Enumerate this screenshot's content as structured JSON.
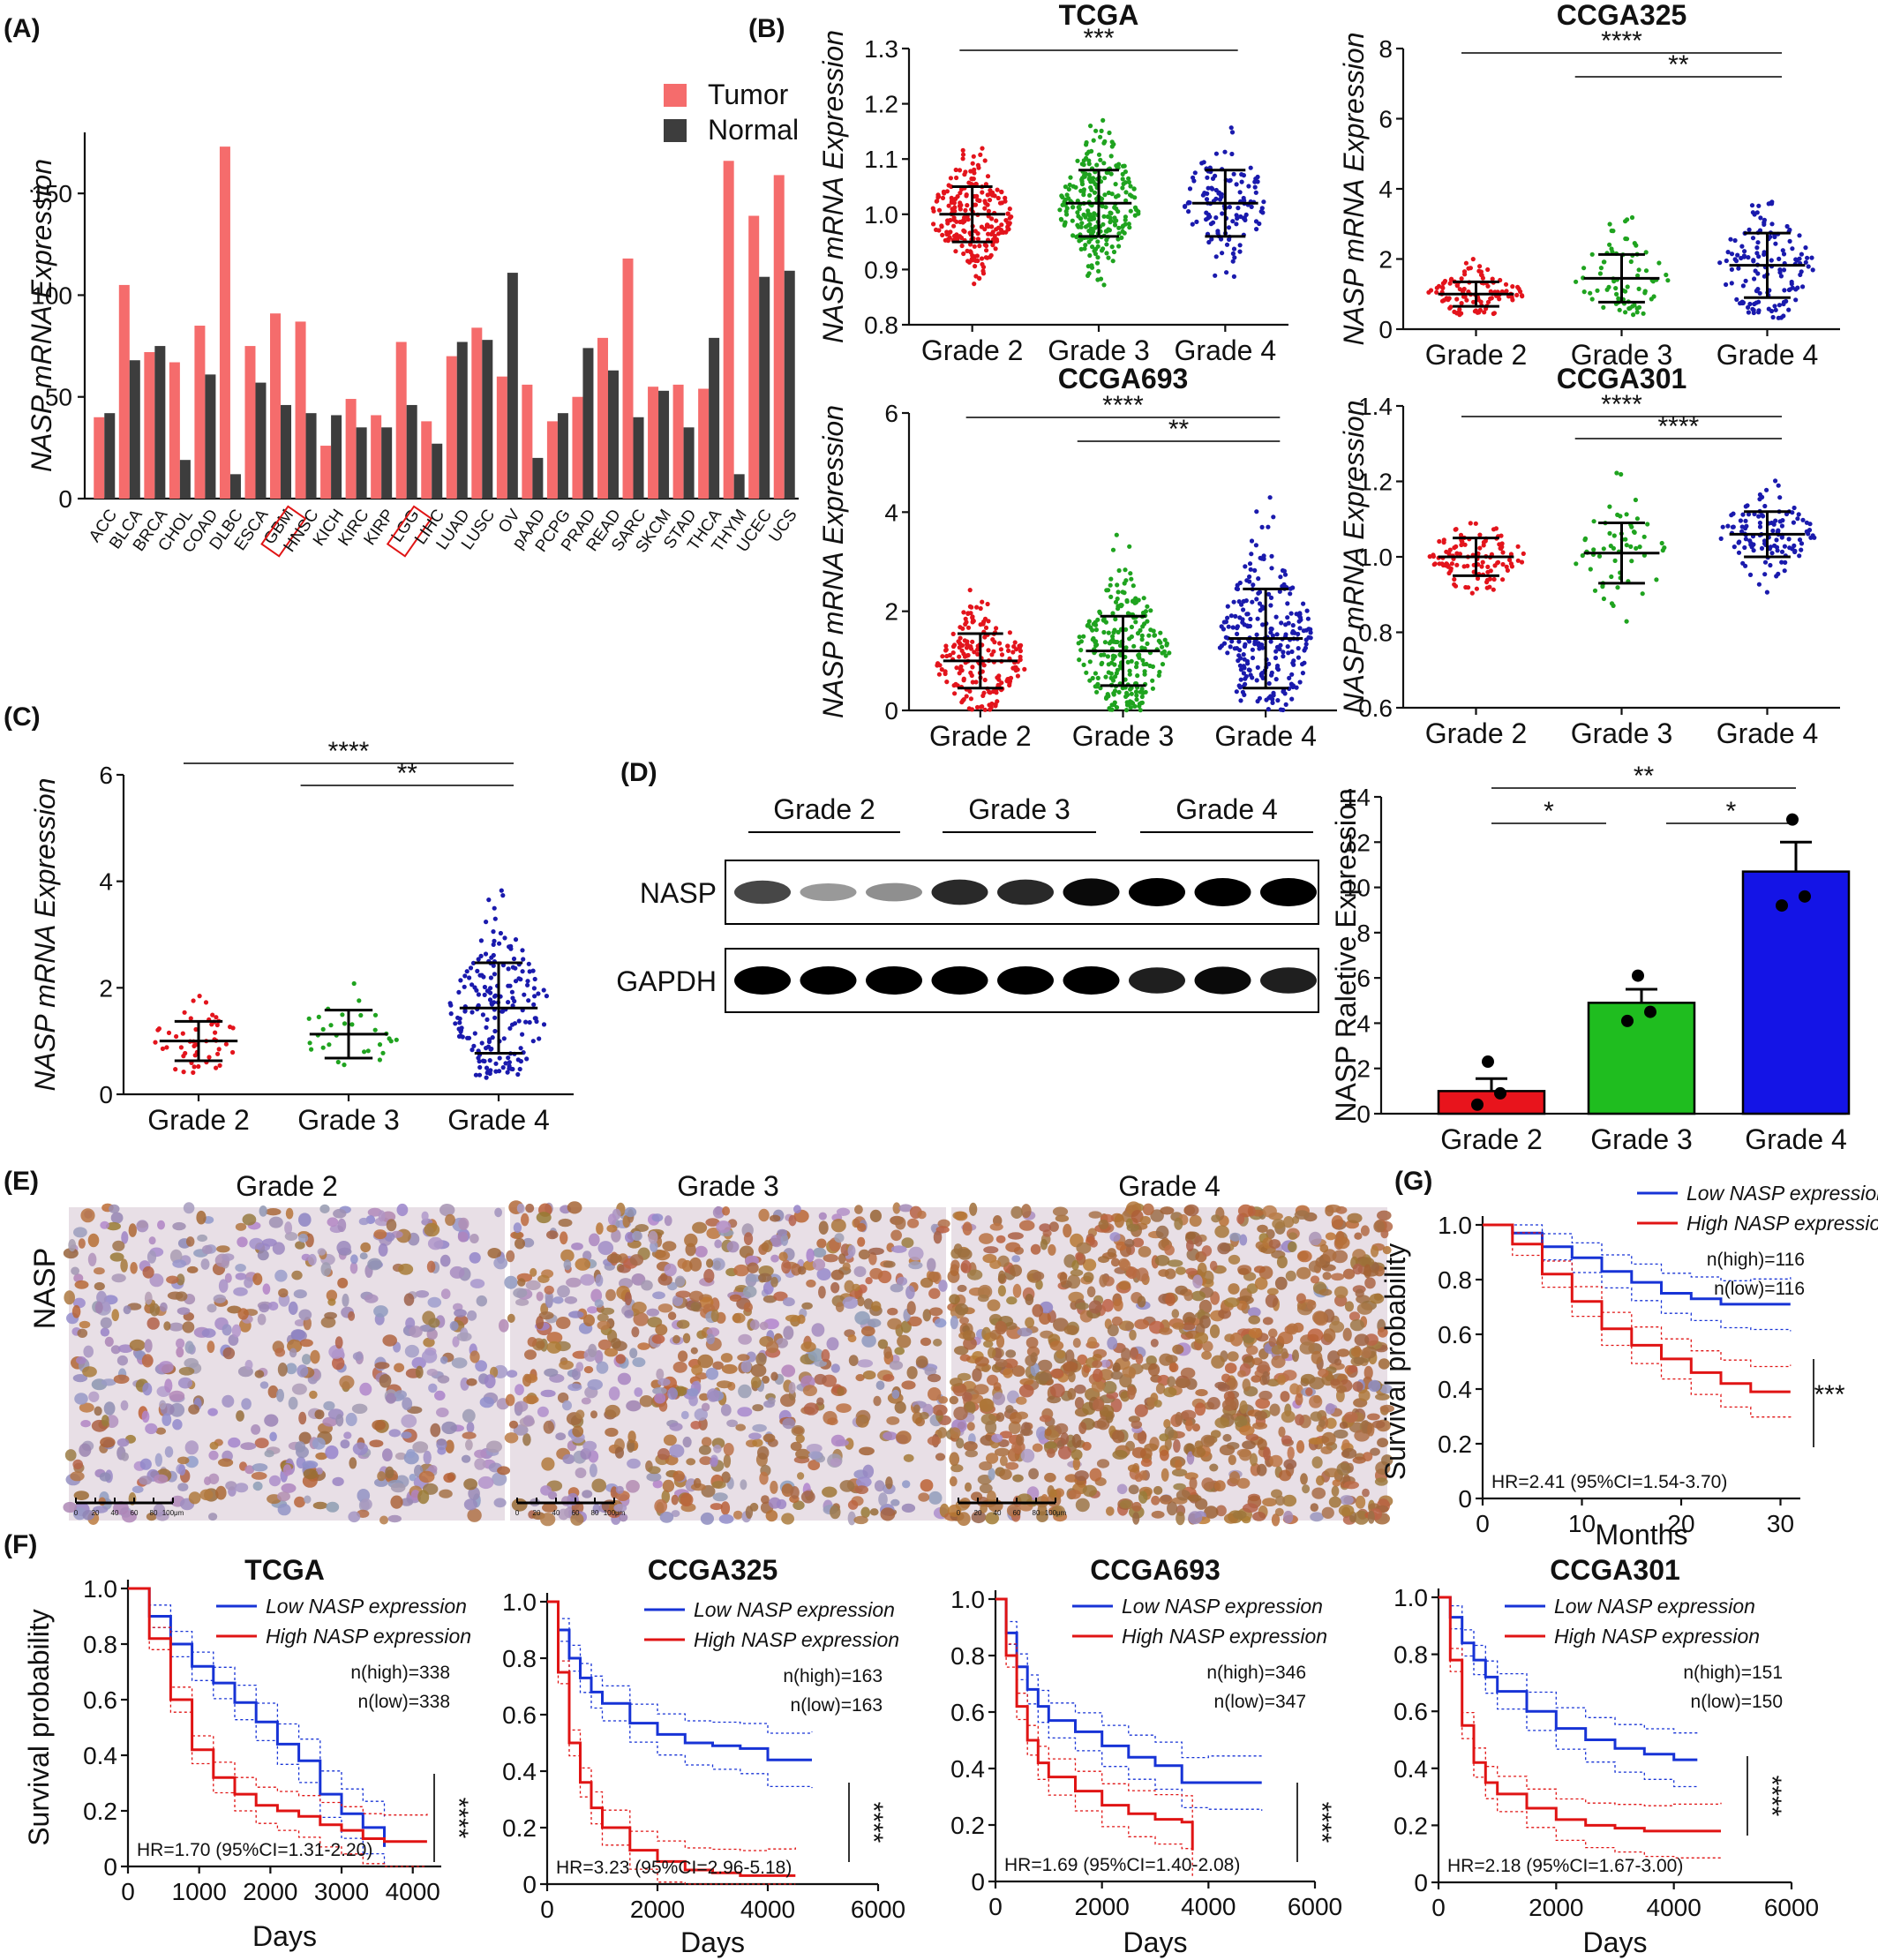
{
  "panel_letters": [
    "(A)",
    "(B)",
    "(C)",
    "(D)",
    "(E)",
    "(F)",
    "(G)"
  ],
  "colors": {
    "tumor": "#f56c6c",
    "normal": "#3d3d3d",
    "grade2": "#e3141c",
    "grade3": "#1fa31f",
    "grade4": "#1a1aad",
    "low": "#1733d6",
    "high": "#e01414",
    "grade2_bar": "#e8141c",
    "grade3_bar": "#1fbd1f",
    "grade4_bar": "#1414e6"
  },
  "chart_data": [
    {
      "id": "A",
      "type": "bar",
      "ylabel": "NASP mRNA Expression",
      "ylim": [
        0,
        180
      ],
      "yticks": [
        0,
        50,
        100,
        150
      ],
      "categories": [
        "ACC",
        "BLCA",
        "BRCA",
        "CHOL",
        "COAD",
        "DLBC",
        "ESCA",
        "GBM",
        "HNSC",
        "KICH",
        "KIRC",
        "KIRP",
        "LGG",
        "LIHC",
        "LUAD",
        "LUSC",
        "OV",
        "pAAD",
        "PCPG",
        "PRAD",
        "READ",
        "SARC",
        "SKCM",
        "STAD",
        "THCA",
        "THYM",
        "UCEC",
        "UCS"
      ],
      "boxed": [
        "GBM",
        "LGG"
      ],
      "series": [
        {
          "name": "Tumor",
          "values": [
            40,
            105,
            72,
            67,
            85,
            173,
            75,
            91,
            87,
            26,
            49,
            41,
            77,
            38,
            70,
            84,
            60,
            56,
            38,
            50,
            79,
            118,
            55,
            56,
            54,
            166,
            139,
            159
          ]
        },
        {
          "name": "Normal",
          "values": [
            42,
            68,
            75,
            19,
            61,
            12,
            57,
            46,
            42,
            41,
            35,
            35,
            46,
            27,
            77,
            78,
            111,
            20,
            42,
            74,
            63,
            40,
            53,
            35,
            79,
            12,
            109,
            112
          ]
        }
      ]
    },
    {
      "id": "B1",
      "type": "scatter",
      "title": "TCGA",
      "ylabel": "NASP mRNA Expression",
      "categories": [
        "Grade 2",
        "Grade 3",
        "Grade 4"
      ],
      "ylim": [
        0.8,
        1.3
      ],
      "yticks": [
        "0.8",
        "0.9",
        "1.0",
        "1.1",
        "1.2",
        "1.3"
      ],
      "mean": [
        1.0,
        1.02,
        1.02
      ],
      "sd": [
        0.05,
        0.06,
        0.06
      ],
      "n": [
        230,
        260,
        130
      ],
      "range": [
        [
          0.87,
          1.14
        ],
        [
          0.86,
          1.17
        ],
        [
          0.84,
          1.16
        ]
      ],
      "significance": [
        {
          "from": 0,
          "to": 2,
          "label": "***"
        }
      ]
    },
    {
      "id": "B2",
      "type": "scatter",
      "title": "CCGA325",
      "ylabel": "NASP mRNA Expression",
      "categories": [
        "Grade 2",
        "Grade 3",
        "Grade 4"
      ],
      "ylim": [
        0,
        8
      ],
      "yticks": [
        "0",
        "2",
        "4",
        "6",
        "8"
      ],
      "mean": [
        1.0,
        1.45,
        1.82
      ],
      "sd": [
        0.35,
        0.68,
        0.92
      ],
      "n": [
        105,
        75,
        140
      ],
      "range": [
        [
          0.4,
          2.3
        ],
        [
          0.4,
          4.2
        ],
        [
          0.3,
          6.3
        ]
      ],
      "significance": [
        {
          "from": 0,
          "to": 2,
          "label": "****"
        },
        {
          "from": 1,
          "to": 2,
          "label": "**"
        }
      ]
    },
    {
      "id": "B3",
      "type": "scatter",
      "title": "CCGA693",
      "ylabel": "NASP mRNA Expression",
      "categories": [
        "Grade 2",
        "Grade 3",
        "Grade 4"
      ],
      "ylim": [
        0,
        6
      ],
      "yticks": [
        "0",
        "2",
        "4",
        "6"
      ],
      "mean": [
        1.0,
        1.2,
        1.45
      ],
      "sd": [
        0.55,
        0.7,
        1.0
      ],
      "n": [
        190,
        250,
        250
      ],
      "range": [
        [
          0,
          3.8
        ],
        [
          0,
          4.8
        ],
        [
          0,
          5.8
        ]
      ],
      "significance": [
        {
          "from": 0,
          "to": 2,
          "label": "****"
        },
        {
          "from": 1,
          "to": 2,
          "label": "**"
        }
      ]
    },
    {
      "id": "B4",
      "type": "scatter",
      "title": "CCGA301",
      "ylabel": "NASP mRNA Expression",
      "categories": [
        "Grade 2",
        "Grade 3",
        "Grade 4"
      ],
      "ylim": [
        0.6,
        1.4
      ],
      "yticks": [
        "0.6",
        "0.8",
        "1.0",
        "1.2",
        "1.4"
      ],
      "mean": [
        1.0,
        1.01,
        1.06
      ],
      "sd": [
        0.05,
        0.08,
        0.06
      ],
      "n": [
        110,
        60,
        120
      ],
      "range": [
        [
          0.88,
          1.1
        ],
        [
          0.82,
          1.25
        ],
        [
          0.81,
          1.25
        ]
      ],
      "significance": [
        {
          "from": 0,
          "to": 2,
          "label": "****"
        },
        {
          "from": 1,
          "to": 2,
          "label": "****"
        }
      ]
    },
    {
      "id": "C",
      "type": "scatter",
      "ylabel": "NASP mRNA Expression",
      "categories": [
        "Grade 2",
        "Grade 3",
        "Grade 4"
      ],
      "ylim": [
        0,
        6
      ],
      "yticks": [
        "0",
        "2",
        "4",
        "6"
      ],
      "mean": [
        1.0,
        1.13,
        1.62
      ],
      "sd": [
        0.37,
        0.45,
        0.85
      ],
      "n": [
        50,
        30,
        190
      ],
      "range": [
        [
          0.4,
          1.85
        ],
        [
          0.5,
          2.2
        ],
        [
          0.3,
          4.8
        ]
      ],
      "significance": [
        {
          "from": 0,
          "to": 2,
          "label": "****"
        },
        {
          "from": 1,
          "to": 2,
          "label": "**"
        }
      ]
    },
    {
      "id": "D",
      "type": "bar",
      "ylabel": "NASP Raletive Expression",
      "categories": [
        "Grade 2",
        "Grade 3",
        "Grade 4"
      ],
      "values": [
        1.0,
        4.9,
        10.7
      ],
      "sem": [
        0.55,
        0.6,
        1.3
      ],
      "points": [
        [
          2.3,
          0.4,
          0.9
        ],
        [
          6.1,
          4.1,
          4.5
        ],
        [
          13.0,
          9.2,
          9.6
        ]
      ],
      "ylim": [
        0,
        14
      ],
      "yticks": [
        "0",
        "2",
        "4",
        "6",
        "8",
        "10",
        "12",
        "14"
      ],
      "significance": [
        {
          "from": 0,
          "to": 2,
          "label": "**"
        },
        {
          "from": 0,
          "to": 1,
          "label": "*"
        },
        {
          "from": 1,
          "to": 2,
          "label": "*"
        }
      ]
    },
    {
      "id": "G",
      "type": "line",
      "xlabel": "Months",
      "ylabel": "Survival probability",
      "xlim": [
        0,
        32
      ],
      "xticks": [
        "0",
        "10",
        "20",
        "30"
      ],
      "ylim": [
        0,
        1.0
      ],
      "yticks": [
        "0",
        "0.2",
        "0.4",
        "0.6",
        "0.8",
        "1.0"
      ],
      "series": [
        {
          "name": "Low NASP expression",
          "x": [
            0,
            3,
            6,
            9,
            12,
            15,
            18,
            21,
            24,
            27,
            31
          ],
          "y": [
            1.0,
            0.97,
            0.92,
            0.88,
            0.83,
            0.79,
            0.75,
            0.73,
            0.71,
            0.71,
            0.71
          ]
        },
        {
          "name": "High NASP expression",
          "x": [
            0,
            3,
            6,
            9,
            12,
            15,
            18,
            21,
            24,
            27,
            31
          ],
          "y": [
            1.0,
            0.93,
            0.82,
            0.72,
            0.62,
            0.56,
            0.51,
            0.46,
            0.42,
            0.39,
            0.39
          ]
        }
      ],
      "n_high": "n(high)=116",
      "n_low": "n(low)=116",
      "hr": "HR=2.41 (95%CI=1.54-3.70)",
      "sig": "***"
    },
    {
      "id": "F1",
      "type": "line",
      "title": "TCGA",
      "xlabel": "Days",
      "ylabel": "Survival probability",
      "xlim": [
        0,
        4400
      ],
      "xticks": [
        "0",
        "1000",
        "2000",
        "3000",
        "4000"
      ],
      "ylim": [
        0,
        1.0
      ],
      "yticks": [
        "0",
        "0.2",
        "0.4",
        "0.6",
        "0.8",
        "1.0"
      ],
      "series": [
        {
          "name": "Low NASP expression",
          "x": [
            0,
            300,
            600,
            900,
            1200,
            1500,
            1800,
            2100,
            2400,
            2700,
            3000,
            3300,
            3600
          ],
          "y": [
            1.0,
            0.9,
            0.8,
            0.72,
            0.66,
            0.59,
            0.52,
            0.44,
            0.38,
            0.26,
            0.19,
            0.14,
            0.07
          ]
        },
        {
          "name": "High NASP expression",
          "x": [
            0,
            300,
            600,
            900,
            1200,
            1500,
            1800,
            2100,
            2400,
            2700,
            3000,
            3300,
            3600,
            4200
          ],
          "y": [
            1.0,
            0.82,
            0.6,
            0.42,
            0.32,
            0.26,
            0.22,
            0.2,
            0.18,
            0.15,
            0.13,
            0.1,
            0.09,
            0.09
          ]
        }
      ],
      "n_high": "n(high)=338",
      "n_low": "n(low)=338",
      "hr": "HR=1.70 (95%CI=1.31-2.20)",
      "sig": "****"
    },
    {
      "id": "F2",
      "type": "line",
      "title": "CCGA325",
      "xlabel": "Days",
      "xlim": [
        0,
        6000
      ],
      "xticks": [
        "0",
        "2000",
        "4000",
        "6000"
      ],
      "ylim": [
        0,
        1.0
      ],
      "yticks": [
        "0",
        "0.2",
        "0.4",
        "0.6",
        "0.8",
        "1.0"
      ],
      "series": [
        {
          "name": "Low NASP expression",
          "x": [
            0,
            200,
            400,
            600,
            800,
            1000,
            1500,
            2000,
            2500,
            3000,
            3500,
            4000,
            4800
          ],
          "y": [
            1.0,
            0.9,
            0.8,
            0.73,
            0.68,
            0.64,
            0.57,
            0.53,
            0.5,
            0.49,
            0.48,
            0.44,
            0.44
          ]
        },
        {
          "name": "High NASP expression",
          "x": [
            0,
            200,
            400,
            600,
            800,
            1000,
            1500,
            2000,
            2500,
            3000,
            3500,
            4000,
            4500
          ],
          "y": [
            1.0,
            0.75,
            0.5,
            0.36,
            0.27,
            0.2,
            0.12,
            0.08,
            0.05,
            0.04,
            0.03,
            0.03,
            0.03
          ]
        }
      ],
      "n_high": "n(high)=163",
      "n_low": "n(low)=163",
      "hr": "HR=3.23 (95%CI=2.96-5.18)",
      "sig": "****"
    },
    {
      "id": "F3",
      "type": "line",
      "title": "CCGA693",
      "xlabel": "Days",
      "xlim": [
        0,
        6000
      ],
      "xticks": [
        "0",
        "2000",
        "4000",
        "6000"
      ],
      "ylim": [
        0,
        1.0
      ],
      "yticks": [
        "0",
        "0.2",
        "0.4",
        "0.6",
        "0.8",
        "1.0"
      ],
      "series": [
        {
          "name": "Low NASP expression",
          "x": [
            0,
            200,
            400,
            600,
            800,
            1000,
            1500,
            2000,
            2500,
            3000,
            3500,
            4000,
            5000
          ],
          "y": [
            1.0,
            0.88,
            0.76,
            0.68,
            0.62,
            0.57,
            0.53,
            0.48,
            0.44,
            0.41,
            0.35,
            0.35,
            0.35
          ]
        },
        {
          "name": "High NASP expression",
          "x": [
            0,
            200,
            400,
            600,
            800,
            1000,
            1500,
            2000,
            2500,
            3000,
            3500,
            3700
          ],
          "y": [
            1.0,
            0.8,
            0.62,
            0.5,
            0.42,
            0.37,
            0.32,
            0.27,
            0.24,
            0.22,
            0.21,
            0.11
          ]
        }
      ],
      "n_high": "n(high)=346",
      "n_low": "n(low)=347",
      "hr": "HR=1.69 (95%CI=1.40-2.08)",
      "sig": "****"
    },
    {
      "id": "F4",
      "type": "line",
      "title": "CCGA301",
      "xlabel": "Days",
      "xlim": [
        0,
        6000
      ],
      "xticks": [
        "0",
        "2000",
        "4000",
        "6000"
      ],
      "ylim": [
        0,
        1.0
      ],
      "yticks": [
        "0",
        "0.2",
        "0.4",
        "0.6",
        "0.8",
        "1.0"
      ],
      "series": [
        {
          "name": "Low NASP expression",
          "x": [
            0,
            200,
            400,
            600,
            800,
            1000,
            1500,
            2000,
            2500,
            3000,
            3500,
            4000,
            4400
          ],
          "y": [
            1.0,
            0.93,
            0.84,
            0.78,
            0.72,
            0.67,
            0.6,
            0.54,
            0.5,
            0.47,
            0.45,
            0.43,
            0.43
          ]
        },
        {
          "name": "High NASP expression",
          "x": [
            0,
            200,
            400,
            600,
            800,
            1000,
            1500,
            2000,
            2500,
            3000,
            3500,
            4000,
            4800
          ],
          "y": [
            1.0,
            0.78,
            0.55,
            0.42,
            0.35,
            0.31,
            0.26,
            0.22,
            0.2,
            0.19,
            0.18,
            0.18,
            0.18
          ]
        }
      ],
      "n_high": "n(high)=151",
      "n_low": "n(low)=150",
      "hr": "HR=2.18 (95%CI=1.67-3.00)",
      "sig": "****"
    }
  ],
  "blot": {
    "grades": [
      "Grade 2",
      "Grade 3",
      "Grade 4"
    ],
    "rows": [
      {
        "label": "NASP",
        "intensity": [
          0.65,
          0.25,
          0.3,
          0.8,
          0.8,
          0.95,
          1.0,
          1.0,
          1.0
        ]
      },
      {
        "label": "GAPDH",
        "intensity": [
          1.0,
          1.0,
          1.0,
          1.0,
          1.0,
          1.0,
          0.85,
          0.95,
          0.85
        ]
      }
    ]
  },
  "ihc": {
    "label": "NASP",
    "images": [
      {
        "title": "Grade 2",
        "density": 0.35,
        "staining": 0.3
      },
      {
        "title": "Grade 3",
        "density": 0.55,
        "staining": 0.6
      },
      {
        "title": "Grade 4",
        "density": 0.9,
        "staining": 0.95
      }
    ],
    "scale_ticks": [
      "0",
      "20",
      "40",
      "60",
      "80",
      "100μm"
    ]
  }
}
